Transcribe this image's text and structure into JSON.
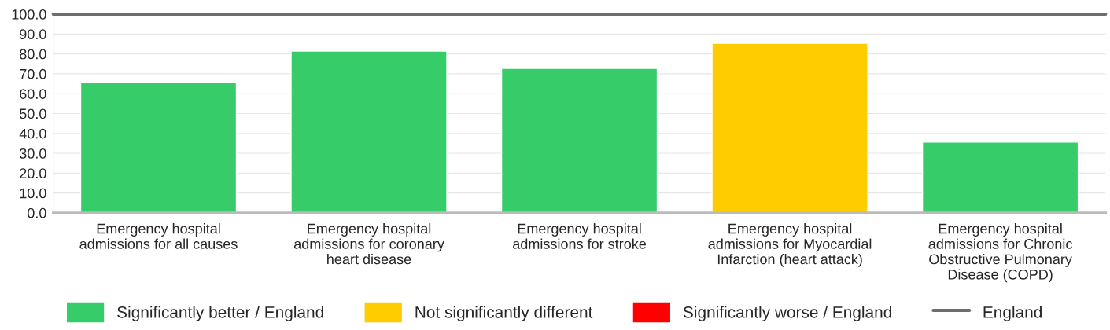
{
  "chart_data": {
    "type": "bar",
    "categories": [
      "Emergency hospital admissions for all causes",
      "Emergency hospital admissions for coronary heart disease",
      "Emergency hospital admissions for stroke",
      "Emergency hospital admissions for Myocardial Infarction (heart attack)",
      "Emergency hospital admissions for Chronic Obstructive Pulmonary Disease (COPD)"
    ],
    "series": [
      {
        "name": "Significantly better / England",
        "color": "#36cc6a",
        "values": [
          65.6,
          81.4,
          72.7,
          null,
          35.6
        ]
      },
      {
        "name": "Not significantly different",
        "color": "#ffcc00",
        "values": [
          null,
          null,
          null,
          85.4,
          null
        ]
      },
      {
        "name": "Significantly worse / England",
        "color": "#ff0000",
        "values": [
          null,
          null,
          null,
          null,
          null
        ]
      }
    ],
    "ref_lines": [
      {
        "axis": "y",
        "value": 100,
        "label": "England",
        "color": "#6d6d6d",
        "line_style": "solid"
      }
    ],
    "ylim": [
      0,
      100
    ],
    "yticks": [
      {
        "value": 0,
        "label": "0.0"
      },
      {
        "value": 10,
        "label": "10.0"
      },
      {
        "value": 20,
        "label": "20.0"
      },
      {
        "value": 30,
        "label": "30.0"
      },
      {
        "value": 40,
        "label": "40.0"
      },
      {
        "value": 50,
        "label": "50.0"
      },
      {
        "value": 60,
        "label": "60.0"
      },
      {
        "value": 70,
        "label": "70.0"
      },
      {
        "value": 80,
        "label": "80.0"
      },
      {
        "value": 90,
        "label": "90.0"
      },
      {
        "value": 100,
        "label": "100.0"
      }
    ],
    "grid": "y",
    "legend": "bottom"
  }
}
